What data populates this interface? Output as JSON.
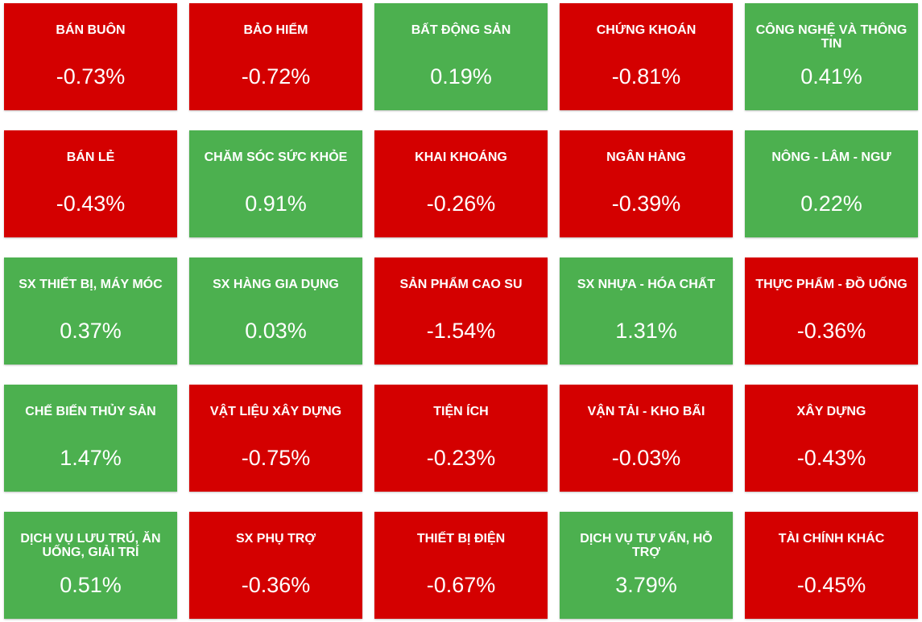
{
  "colors": {
    "up": "#4cb04f",
    "down": "#d40000"
  },
  "chart_data": {
    "type": "heatmap",
    "unit": "%",
    "values_display": [
      "-0.73%",
      "-0.72%",
      "0.19%",
      "-0.81%",
      "0.41%",
      "-0.43%",
      "0.91%",
      "-0.26%",
      "-0.39%",
      "0.22%",
      "0.37%",
      "0.03%",
      "-1.54%",
      "1.31%",
      "-0.36%",
      "1.47%",
      "-0.75%",
      "-0.23%",
      "-0.03%",
      "-0.43%",
      "0.51%",
      "-0.36%",
      "-0.67%",
      "3.79%",
      "-0.45%"
    ],
    "tiles": [
      {
        "name": "BÁN BUÔN",
        "value": -0.73
      },
      {
        "name": "BẢO HIỂM",
        "value": -0.72
      },
      {
        "name": "BẤT ĐỘNG SẢN",
        "value": 0.19
      },
      {
        "name": "CHỨNG KHOÁN",
        "value": -0.81
      },
      {
        "name": "CÔNG NGHỆ VÀ THÔNG TIN",
        "value": 0.41
      },
      {
        "name": "BÁN LẺ",
        "value": -0.43
      },
      {
        "name": "CHĂM SÓC SỨC KHỎE",
        "value": 0.91
      },
      {
        "name": "KHAI KHOÁNG",
        "value": -0.26
      },
      {
        "name": "NGÂN HÀNG",
        "value": -0.39
      },
      {
        "name": "NÔNG - LÂM - NGƯ",
        "value": 0.22
      },
      {
        "name": "SX THIẾT BỊ, MÁY MÓC",
        "value": 0.37
      },
      {
        "name": "SX HÀNG GIA DỤNG",
        "value": 0.03
      },
      {
        "name": "SẢN PHẨM CAO SU",
        "value": -1.54
      },
      {
        "name": "SX NHỰA - HÓA CHẤT",
        "value": 1.31
      },
      {
        "name": "THỰC PHẨM - ĐỒ UỐNG",
        "value": -0.36
      },
      {
        "name": "CHẾ BIẾN THỦY SẢN",
        "value": 1.47
      },
      {
        "name": "VẬT LIỆU XÂY DỰNG",
        "value": -0.75
      },
      {
        "name": "TIỆN ÍCH",
        "value": -0.23
      },
      {
        "name": "VẬN TẢI - KHO BÃI",
        "value": -0.03
      },
      {
        "name": "XÂY DỰNG",
        "value": -0.43
      },
      {
        "name": "DỊCH VỤ LƯU TRÚ, ĂN UỐNG, GIẢI TRÍ",
        "value": 0.51
      },
      {
        "name": "SX PHỤ TRỢ",
        "value": -0.36
      },
      {
        "name": "THIẾT BỊ ĐIỆN",
        "value": -0.67
      },
      {
        "name": "DỊCH VỤ TƯ VẤN, HỖ TRỢ",
        "value": 3.79
      },
      {
        "name": "TÀI CHÍNH KHÁC",
        "value": -0.45
      }
    ]
  }
}
